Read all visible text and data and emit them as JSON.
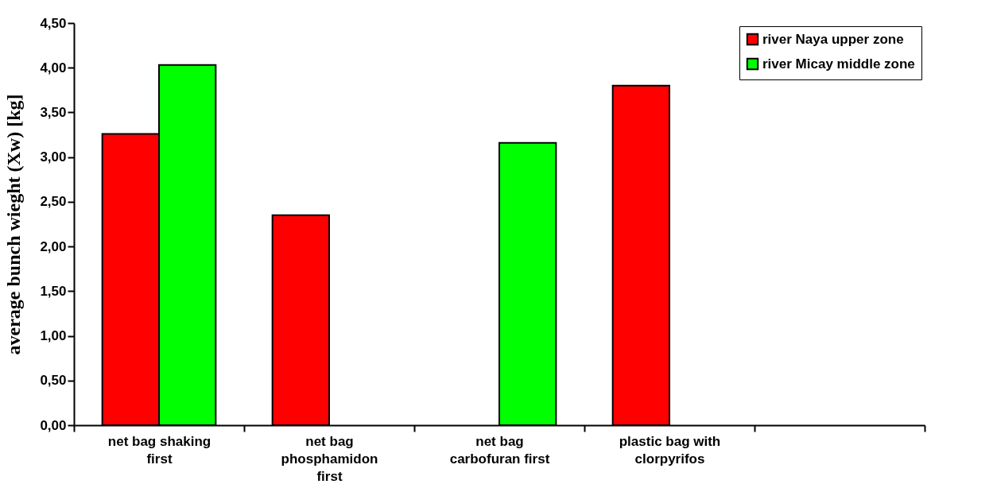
{
  "chart_data": {
    "type": "bar",
    "ylabel": "average bunch wieght (Xw)  [kg]",
    "categories": [
      "net bag shaking first",
      "net bag phosphamidon first",
      "net bag carbofuran first",
      "plastic bag with clorpyrifos",
      null
    ],
    "series": [
      {
        "name": "river Naya upper zone",
        "color": "#ff0000",
        "values": [
          3.26,
          2.35,
          null,
          3.8,
          null
        ]
      },
      {
        "name": "river Micay middle zone",
        "color": "#00ff00",
        "values": [
          4.03,
          null,
          3.16,
          null,
          null
        ]
      }
    ],
    "ylim": [
      0,
      4.5
    ],
    "yticks": [
      {
        "value": 0,
        "label": "0,00"
      },
      {
        "value": 0.5,
        "label": "0,50"
      },
      {
        "value": 1,
        "label": "1,00"
      },
      {
        "value": 1.5,
        "label": "1,50"
      },
      {
        "value": 2,
        "label": "2,00"
      },
      {
        "value": 2.5,
        "label": "2,50"
      },
      {
        "value": 3,
        "label": "3,00"
      },
      {
        "value": 3.5,
        "label": "3,50"
      },
      {
        "value": 4,
        "label": "4,00"
      },
      {
        "value": 4.5,
        "label": "4,50"
      }
    ],
    "grid": false,
    "legend": "top right"
  }
}
